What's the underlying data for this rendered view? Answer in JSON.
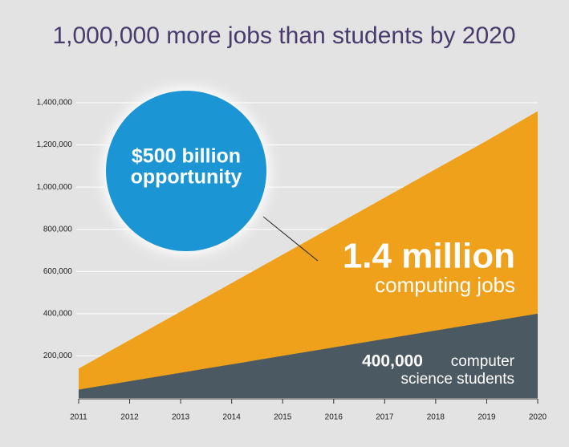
{
  "chart_data": {
    "type": "area",
    "title": "1,000,000 more jobs than students by 2020",
    "categories": [
      "2011",
      "2012",
      "2013",
      "2014",
      "2015",
      "2016",
      "2017",
      "2018",
      "2019",
      "2020"
    ],
    "series": [
      {
        "name": "computing jobs",
        "color": "#f0a11c",
        "values": [
          140000,
          275000,
          410000,
          545000,
          680000,
          815000,
          950000,
          1085000,
          1220000,
          1360000
        ]
      },
      {
        "name": "computer science students",
        "color": "#4b5a62",
        "values": [
          40000,
          80000,
          120000,
          160000,
          200000,
          240000,
          280000,
          320000,
          360000,
          400000
        ]
      }
    ],
    "ylim": [
      0,
      1400000
    ],
    "yticks": [
      {
        "value": 200000,
        "label": "200,000"
      },
      {
        "value": 400000,
        "label": "400,000"
      },
      {
        "value": 600000,
        "label": "600,000"
      },
      {
        "value": 800000,
        "label": "800,000"
      },
      {
        "value": 1000000,
        "label": "1,000,000"
      },
      {
        "value": 1200000,
        "label": "1,200,000"
      },
      {
        "value": 1400000,
        "label": "1,400,000"
      }
    ],
    "grid": true,
    "annotations": {
      "circle": [
        "$500 billion",
        "opportunity"
      ],
      "jobs": [
        "1.4 million",
        "computing jobs"
      ],
      "students": [
        "400,000",
        "computer",
        "science students"
      ]
    }
  }
}
